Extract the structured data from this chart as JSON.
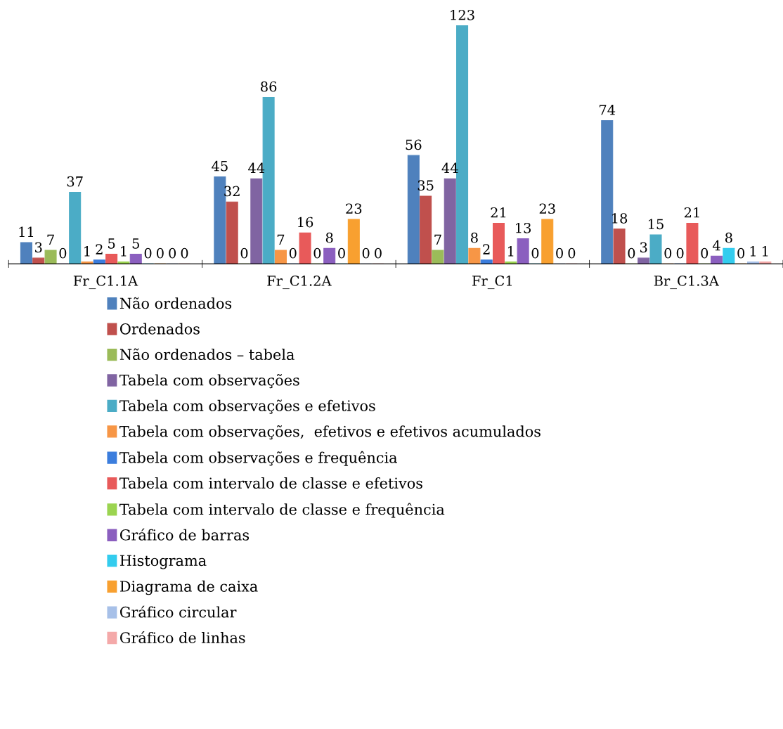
{
  "chart_data": {
    "type": "bar",
    "categories": [
      "Fr_C1.1A",
      "Fr_C1.2A",
      "Fr_C1",
      "Br_C1.3A"
    ],
    "series": [
      {
        "name": "Não ordenados",
        "color": "#4f81bd",
        "values": [
          11,
          45,
          56,
          74
        ]
      },
      {
        "name": "Ordenados",
        "color": "#c0504d",
        "values": [
          3,
          32,
          35,
          18
        ]
      },
      {
        "name": "Não ordenados – tabela",
        "color": "#9bbb59",
        "values": [
          7,
          0,
          7,
          0
        ]
      },
      {
        "name": "Tabela com observações",
        "color": "#8064a2",
        "values": [
          0,
          44,
          44,
          3
        ]
      },
      {
        "name": "Tabela com observações e efetivos",
        "color": "#4bacc6",
        "values": [
          37,
          86,
          123,
          15
        ]
      },
      {
        "name": "Tabela com observações,  efetivos e efetivos acumulados",
        "color": "#f79646",
        "values": [
          1,
          7,
          8,
          0
        ]
      },
      {
        "name": "Tabela com observações e frequência",
        "color": "#3b7ddd",
        "values": [
          2,
          0,
          2,
          0
        ]
      },
      {
        "name": "Tabela com intervalo de classe e efetivos",
        "color": "#e85a5a",
        "values": [
          5,
          16,
          21,
          21
        ]
      },
      {
        "name": "Tabela com intervalo de classe e frequência",
        "color": "#9bd450",
        "values": [
          1,
          0,
          1,
          0
        ]
      },
      {
        "name": "Gráfico de barras",
        "color": "#8b5fbf",
        "values": [
          5,
          8,
          13,
          4
        ]
      },
      {
        "name": "Histograma",
        "color": "#33ccee",
        "values": [
          0,
          0,
          0,
          8
        ]
      },
      {
        "name": "Diagrama de caixa",
        "color": "#f8a030",
        "values": [
          0,
          23,
          23,
          0
        ]
      },
      {
        "name": "Gráfico circular",
        "color": "#a7c0e8",
        "values": [
          0,
          0,
          0,
          1
        ]
      },
      {
        "name": "Gráfico de linhas",
        "color": "#f4a9a9",
        "values": [
          0,
          0,
          0,
          1
        ]
      }
    ],
    "data_labels": true,
    "legend": "bottom",
    "grid": false
  }
}
